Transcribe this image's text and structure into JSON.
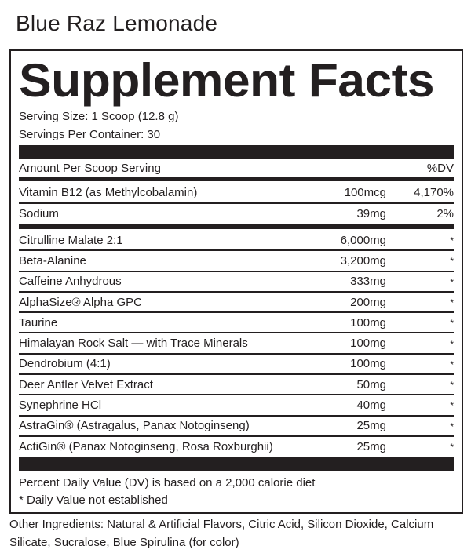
{
  "flavor": "Blue Raz Lemonade",
  "title": "Supplement Facts",
  "serving_size": "Serving Size: 1 Scoop (12.8 g)",
  "servings_per_container": "Servings Per Container: 30",
  "header": {
    "amount_label": "Amount Per Scoop Serving",
    "dv_label": "%DV"
  },
  "vitamins": [
    {
      "name": "Vitamin B12 (as Methylcobalamin)",
      "amount": "100mcg",
      "dv": "4,170%"
    },
    {
      "name": "Sodium",
      "amount": "39mg",
      "dv": "2%"
    }
  ],
  "ingredients": [
    {
      "name": "Citrulline Malate 2:1",
      "amount": "6,000mg",
      "dv": "*"
    },
    {
      "name": "Beta-Alanine",
      "amount": "3,200mg",
      "dv": "*"
    },
    {
      "name": "Caffeine Anhydrous",
      "amount": "333mg",
      "dv": "*"
    },
    {
      "name": "AlphaSize® Alpha GPC",
      "amount": "200mg",
      "dv": "*"
    },
    {
      "name": "Taurine",
      "amount": "100mg",
      "dv": "*"
    },
    {
      "name": "Himalayan Rock Salt — with Trace Minerals",
      "amount": "100mg",
      "dv": "*"
    },
    {
      "name": "Dendrobium (4:1)",
      "amount": "100mg",
      "dv": "*"
    },
    {
      "name": "Deer Antler Velvet Extract",
      "amount": "50mg",
      "dv": "*"
    },
    {
      "name": "Synephrine HCl",
      "amount": "40mg",
      "dv": "*"
    },
    {
      "name": "AstraGin® (Astragalus, Panax Notoginseng)",
      "amount": "25mg",
      "dv": "*"
    },
    {
      "name": "ActiGin® (Panax Notoginseng, Rosa Roxburghii)",
      "amount": "25mg",
      "dv": "*"
    }
  ],
  "footnotes": [
    "Percent Daily Value (DV) is based on a 2,000 calorie diet",
    "* Daily Value not established"
  ],
  "other_ingredients": "Other Ingredients: Natural & Artificial Flavors, Citric Acid, Silicon Dioxide, Calcium Silicate, Sucralose, Blue Spirulina (for color)"
}
